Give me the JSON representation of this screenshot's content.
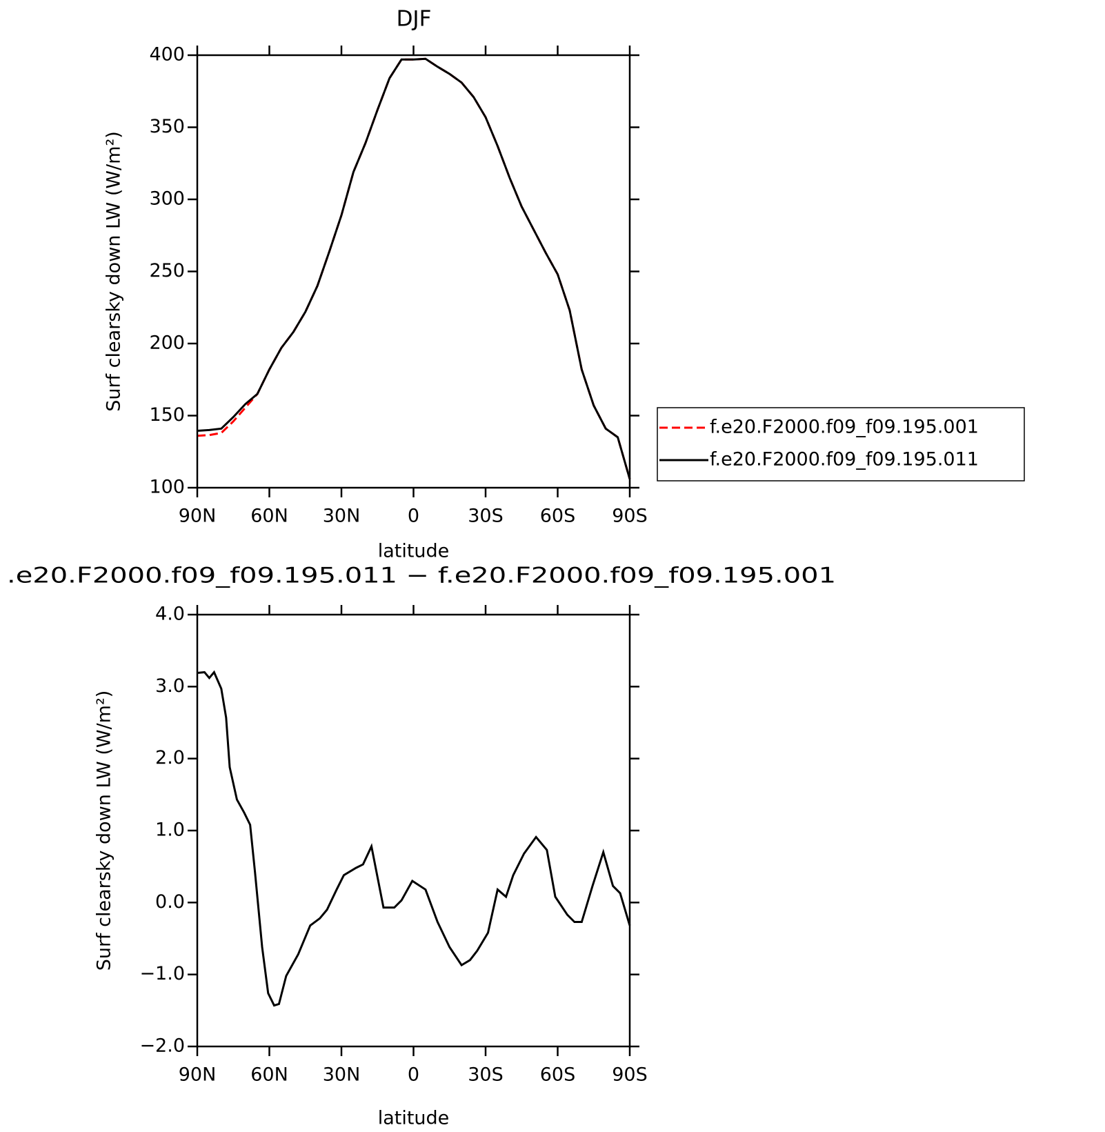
{
  "chart_data": [
    {
      "type": "line",
      "title": "DJF",
      "xlabel": "latitude",
      "ylabel": "Surf clearsky down LW (W/m²)",
      "x": [
        90,
        85,
        80,
        75,
        70,
        65,
        60,
        55,
        50,
        45,
        40,
        35,
        30,
        25,
        20,
        15,
        10,
        5,
        0,
        -5,
        -10,
        -15,
        -20,
        -25,
        -30,
        -35,
        -40,
        -45,
        -50,
        -55,
        -60,
        -65,
        -70,
        -75,
        -80,
        -85,
        -90
      ],
      "series": [
        {
          "name": "f.e20.F2000.f09_f09.195.001",
          "color": "#ff0000",
          "linestyle": "dashed",
          "values": [
            136,
            136.5,
            138,
            146,
            155.5,
            165,
            182,
            197,
            208,
            222,
            240,
            264,
            289,
            319,
            339,
            362,
            384,
            397,
            397,
            397.5,
            392,
            387,
            381,
            371,
            357,
            337,
            315,
            295,
            279,
            263,
            248,
            223,
            182,
            157,
            141,
            135,
            106
          ]
        },
        {
          "name": "f.e20.F2000.f09_f09.195.011",
          "color": "#000000",
          "linestyle": "solid",
          "values": [
            139.5,
            140,
            141,
            149,
            158,
            165,
            182,
            197,
            208,
            222,
            240,
            264,
            289,
            319,
            339,
            362,
            384,
            397,
            397,
            397.5,
            392,
            387,
            381,
            371,
            357,
            337,
            315,
            295,
            279,
            263,
            248,
            223,
            182,
            157,
            141,
            135,
            106
          ]
        }
      ],
      "xlim": [
        90,
        -90
      ],
      "xticks": [
        {
          "value": 90,
          "label": "90N"
        },
        {
          "value": 60,
          "label": "60N"
        },
        {
          "value": 30,
          "label": "30N"
        },
        0,
        {
          "value": -30,
          "label": "30S"
        },
        {
          "value": -60,
          "label": "60S"
        },
        {
          "value": -90,
          "label": "90S"
        }
      ],
      "ylim": [
        100,
        400
      ],
      "yticks": [
        100,
        150,
        200,
        250,
        300,
        350,
        400
      ],
      "legend": "right"
    },
    {
      "type": "line",
      "title": ".e20.F2000.f09_f09.195.011 − f.e20.F2000.f09_f09.195.001",
      "xlabel": "latitude",
      "ylabel": "Surf clearsky down LW (W/m²)",
      "x": [
        90,
        87,
        85,
        83,
        80,
        78,
        76.5,
        73.5,
        70.5,
        68,
        66,
        63,
        60.5,
        58,
        56,
        53,
        48,
        43,
        39,
        36,
        32,
        29,
        24,
        21,
        17.5,
        12.5,
        8,
        5,
        0.5,
        -5,
        -10,
        -15,
        -20,
        -23.5,
        -26.5,
        -31,
        -35,
        -38.5,
        -41.5,
        -46,
        -51,
        -55.5,
        -59,
        -64,
        -67,
        -70,
        -74.5,
        -79,
        -83,
        -86,
        -90
      ],
      "series": [
        {
          "color": "#000000",
          "linestyle": "solid",
          "values": [
            3.19,
            3.2,
            3.12,
            3.2,
            2.97,
            2.57,
            1.88,
            1.43,
            1.25,
            1.08,
            0.43,
            -0.62,
            -1.26,
            -1.43,
            -1.41,
            -1.02,
            -0.72,
            -0.32,
            -0.22,
            -0.1,
            0.18,
            0.38,
            0.48,
            0.53,
            0.78,
            -0.07,
            -0.07,
            0.03,
            0.3,
            0.18,
            -0.27,
            -0.62,
            -0.87,
            -0.8,
            -0.67,
            -0.42,
            0.18,
            0.08,
            0.38,
            0.68,
            0.91,
            0.73,
            0.08,
            -0.17,
            -0.27,
            -0.27,
            0.23,
            0.7,
            0.23,
            0.13,
            -0.32
          ]
        }
      ],
      "xlim": [
        90,
        -90
      ],
      "xticks": [
        {
          "value": 90,
          "label": "90N"
        },
        {
          "value": 60,
          "label": "60N"
        },
        {
          "value": 30,
          "label": "30N"
        },
        0,
        {
          "value": -30,
          "label": "30S"
        },
        {
          "value": -60,
          "label": "60S"
        },
        {
          "value": -90,
          "label": "90S"
        }
      ],
      "ylim": [
        -2,
        4
      ],
      "yticks": [
        {
          "value": -2,
          "label": "−2.0"
        },
        {
          "value": -1,
          "label": "−1.0"
        },
        {
          "value": 0,
          "label": "0.0"
        },
        {
          "value": 1,
          "label": "1.0"
        },
        {
          "value": 2,
          "label": "2.0"
        },
        {
          "value": 3,
          "label": "3.0"
        },
        {
          "value": 4,
          "label": "4.0"
        }
      ]
    }
  ]
}
